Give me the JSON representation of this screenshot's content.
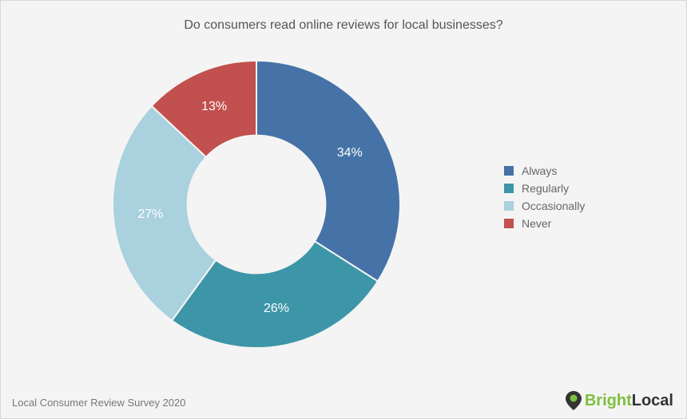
{
  "title": "Do consumers read online reviews for local businesses?",
  "footer": "Local Consumer Review Survey 2020",
  "brand": {
    "bright": "Bright",
    "local": "Local",
    "bright_color": "#7fbf3f",
    "local_color": "#333333"
  },
  "chart": {
    "type": "donut",
    "background_color": "#f4f4f4",
    "inner_radius_ratio": 0.48,
    "label_fontsize": 16,
    "label_color": "#ffffff",
    "slices": [
      {
        "label": "Always",
        "value": 34,
        "display": "34%",
        "color": "#4572a7"
      },
      {
        "label": "Regularly",
        "value": 26,
        "display": "26%",
        "color": "#3c96a8"
      },
      {
        "label": "Occasionally",
        "value": 27,
        "display": "27%",
        "color": "#a9d1de"
      },
      {
        "label": "Never",
        "value": 13,
        "display": "13%",
        "color": "#c1504e"
      }
    ]
  },
  "legend": {
    "fontsize": 14,
    "text_color": "#666666",
    "swatch_size": 12
  }
}
